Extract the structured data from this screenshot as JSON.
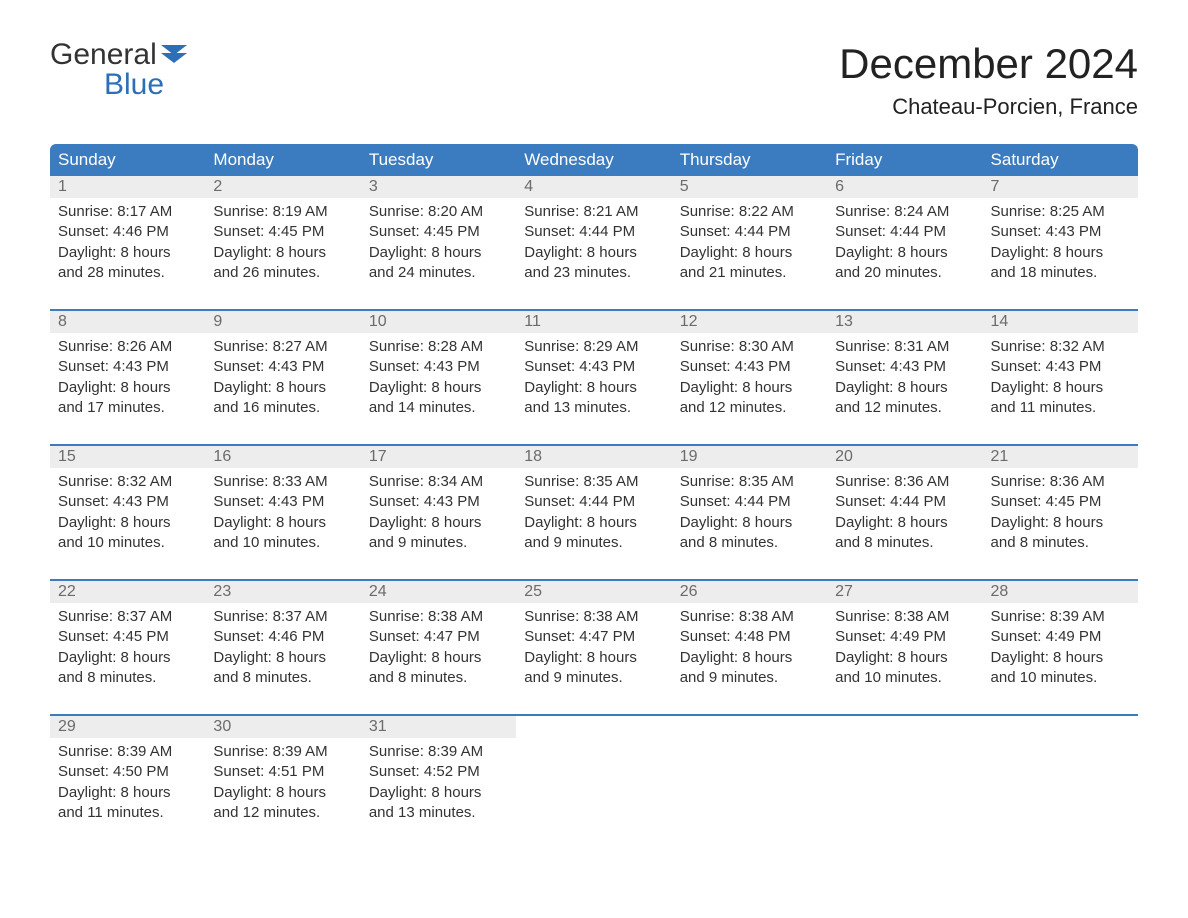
{
  "logo": {
    "line1": "General",
    "line2": "Blue"
  },
  "title": "December 2024",
  "location": "Chateau-Porcien, France",
  "colors": {
    "header_bg": "#3b7bbf",
    "header_text": "#ffffff",
    "daynum_bg": "#ededed",
    "daynum_text": "#6b6b6b",
    "body_text": "#333333",
    "accent": "#2d6fb6",
    "page_bg": "#ffffff"
  },
  "weekdays": [
    "Sunday",
    "Monday",
    "Tuesday",
    "Wednesday",
    "Thursday",
    "Friday",
    "Saturday"
  ],
  "weeks": [
    [
      {
        "n": "1",
        "sr": "8:17 AM",
        "ss": "4:46 PM",
        "dl": "8 hours and 28 minutes."
      },
      {
        "n": "2",
        "sr": "8:19 AM",
        "ss": "4:45 PM",
        "dl": "8 hours and 26 minutes."
      },
      {
        "n": "3",
        "sr": "8:20 AM",
        "ss": "4:45 PM",
        "dl": "8 hours and 24 minutes."
      },
      {
        "n": "4",
        "sr": "8:21 AM",
        "ss": "4:44 PM",
        "dl": "8 hours and 23 minutes."
      },
      {
        "n": "5",
        "sr": "8:22 AM",
        "ss": "4:44 PM",
        "dl": "8 hours and 21 minutes."
      },
      {
        "n": "6",
        "sr": "8:24 AM",
        "ss": "4:44 PM",
        "dl": "8 hours and 20 minutes."
      },
      {
        "n": "7",
        "sr": "8:25 AM",
        "ss": "4:43 PM",
        "dl": "8 hours and 18 minutes."
      }
    ],
    [
      {
        "n": "8",
        "sr": "8:26 AM",
        "ss": "4:43 PM",
        "dl": "8 hours and 17 minutes."
      },
      {
        "n": "9",
        "sr": "8:27 AM",
        "ss": "4:43 PM",
        "dl": "8 hours and 16 minutes."
      },
      {
        "n": "10",
        "sr": "8:28 AM",
        "ss": "4:43 PM",
        "dl": "8 hours and 14 minutes."
      },
      {
        "n": "11",
        "sr": "8:29 AM",
        "ss": "4:43 PM",
        "dl": "8 hours and 13 minutes."
      },
      {
        "n": "12",
        "sr": "8:30 AM",
        "ss": "4:43 PM",
        "dl": "8 hours and 12 minutes."
      },
      {
        "n": "13",
        "sr": "8:31 AM",
        "ss": "4:43 PM",
        "dl": "8 hours and 12 minutes."
      },
      {
        "n": "14",
        "sr": "8:32 AM",
        "ss": "4:43 PM",
        "dl": "8 hours and 11 minutes."
      }
    ],
    [
      {
        "n": "15",
        "sr": "8:32 AM",
        "ss": "4:43 PM",
        "dl": "8 hours and 10 minutes."
      },
      {
        "n": "16",
        "sr": "8:33 AM",
        "ss": "4:43 PM",
        "dl": "8 hours and 10 minutes."
      },
      {
        "n": "17",
        "sr": "8:34 AM",
        "ss": "4:43 PM",
        "dl": "8 hours and 9 minutes."
      },
      {
        "n": "18",
        "sr": "8:35 AM",
        "ss": "4:44 PM",
        "dl": "8 hours and 9 minutes."
      },
      {
        "n": "19",
        "sr": "8:35 AM",
        "ss": "4:44 PM",
        "dl": "8 hours and 8 minutes."
      },
      {
        "n": "20",
        "sr": "8:36 AM",
        "ss": "4:44 PM",
        "dl": "8 hours and 8 minutes."
      },
      {
        "n": "21",
        "sr": "8:36 AM",
        "ss": "4:45 PM",
        "dl": "8 hours and 8 minutes."
      }
    ],
    [
      {
        "n": "22",
        "sr": "8:37 AM",
        "ss": "4:45 PM",
        "dl": "8 hours and 8 minutes."
      },
      {
        "n": "23",
        "sr": "8:37 AM",
        "ss": "4:46 PM",
        "dl": "8 hours and 8 minutes."
      },
      {
        "n": "24",
        "sr": "8:38 AM",
        "ss": "4:47 PM",
        "dl": "8 hours and 8 minutes."
      },
      {
        "n": "25",
        "sr": "8:38 AM",
        "ss": "4:47 PM",
        "dl": "8 hours and 9 minutes."
      },
      {
        "n": "26",
        "sr": "8:38 AM",
        "ss": "4:48 PM",
        "dl": "8 hours and 9 minutes."
      },
      {
        "n": "27",
        "sr": "8:38 AM",
        "ss": "4:49 PM",
        "dl": "8 hours and 10 minutes."
      },
      {
        "n": "28",
        "sr": "8:39 AM",
        "ss": "4:49 PM",
        "dl": "8 hours and 10 minutes."
      }
    ],
    [
      {
        "n": "29",
        "sr": "8:39 AM",
        "ss": "4:50 PM",
        "dl": "8 hours and 11 minutes."
      },
      {
        "n": "30",
        "sr": "8:39 AM",
        "ss": "4:51 PM",
        "dl": "8 hours and 12 minutes."
      },
      {
        "n": "31",
        "sr": "8:39 AM",
        "ss": "4:52 PM",
        "dl": "8 hours and 13 minutes."
      },
      null,
      null,
      null,
      null
    ]
  ],
  "labels": {
    "sunrise": "Sunrise: ",
    "sunset": "Sunset: ",
    "daylight": "Daylight: "
  }
}
